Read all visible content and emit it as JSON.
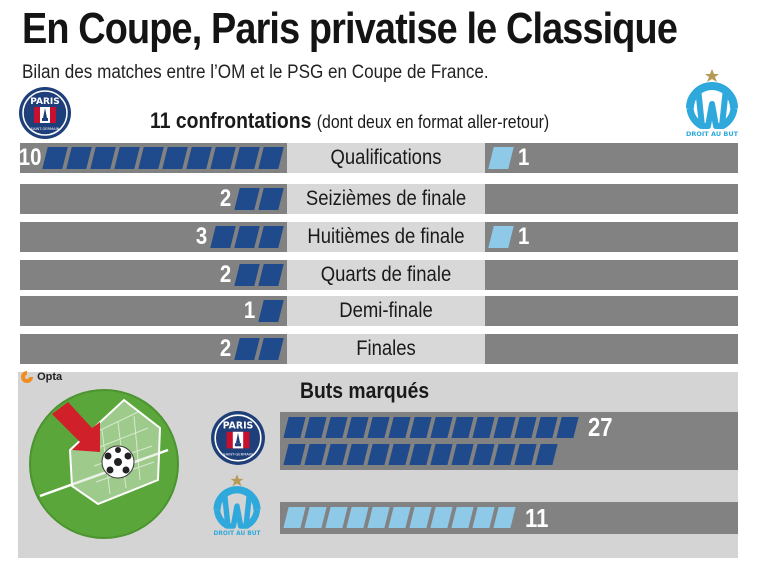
{
  "title": "En Coupe, Paris privatise le Classique",
  "subtitle": "Bilan des matches entre l’OM et le PSG en Coupe de France.",
  "confrontations": {
    "count_label": "11 confrontations",
    "detail": "(dont deux en format aller-retour)"
  },
  "logos": {
    "psg_text": "PARIS",
    "psg_subtext": "SAINT-GERMAIN",
    "om_subtext": "DROIT AU BUT"
  },
  "source": "Opta",
  "colors": {
    "psg": "#1f4a8c",
    "om": "#8fc9e8",
    "bar_bg": "#828282",
    "label_bg": "#d8d8d8"
  },
  "chart_data": [
    {
      "type": "bar",
      "title": "",
      "categories": [
        "Qualifications",
        "Seizièmes de finale",
        "Huitièmes de finale",
        "Quarts de finale",
        "Demi-finale",
        "Finales"
      ],
      "series": [
        {
          "values": [
            10,
            2,
            3,
            2,
            1,
            2
          ]
        },
        {
          "values": [
            1,
            0,
            1,
            0,
            0,
            0
          ]
        }
      ]
    },
    {
      "type": "bar",
      "title": "Buts marqués",
      "series": [
        {
          "values": [
            27
          ]
        },
        {
          "values": [
            11
          ]
        }
      ]
    }
  ]
}
